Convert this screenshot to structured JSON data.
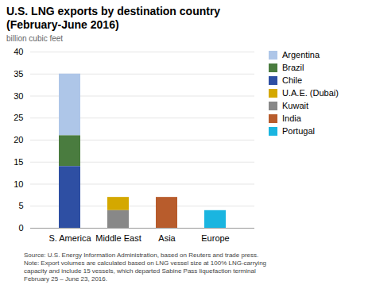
{
  "chart_data": {
    "type": "bar",
    "stacked": true,
    "title": "U.S. LNG exports by destination country",
    "subtitle": "(February-June 2016)",
    "ylabel": "billion cubic feet",
    "caption": "Source: U.S. Energy Information Administration, based on Reuters and trade press.\nNote: Export volumes are calculated based on LNG vessel size at 100% LNG-carrying\ncapacity and include 15 vessels, which departed Sabine Pass liquefaction terminal\nFebruary 25 – June 23, 2016.",
    "categories": [
      "S. America",
      "Middle East",
      "Asia",
      "Europe"
    ],
    "series": [
      {
        "name": "Argentina",
        "color": "#aec6e8",
        "values": [
          14,
          0,
          0,
          0
        ]
      },
      {
        "name": "Brazil",
        "color": "#4a7c3f",
        "values": [
          7,
          0,
          0,
          0
        ]
      },
      {
        "name": "Chile",
        "color": "#2e4fa3",
        "values": [
          14,
          0,
          0,
          0
        ]
      },
      {
        "name": "U.A.E. (Dubai)",
        "color": "#d4a800",
        "values": [
          0,
          3,
          0,
          0
        ]
      },
      {
        "name": "Kuwait",
        "color": "#888888",
        "values": [
          0,
          4,
          0,
          0
        ]
      },
      {
        "name": "India",
        "color": "#b85c2c",
        "values": [
          0,
          0,
          7,
          0
        ]
      },
      {
        "name": "Portugal",
        "color": "#1ab5e0",
        "values": [
          0,
          0,
          0,
          4
        ]
      }
    ],
    "ylim": [
      0,
      40
    ],
    "yticks": [
      0,
      5,
      10,
      15,
      20,
      25,
      30,
      35,
      40
    ],
    "grid": true,
    "legend": "right"
  }
}
